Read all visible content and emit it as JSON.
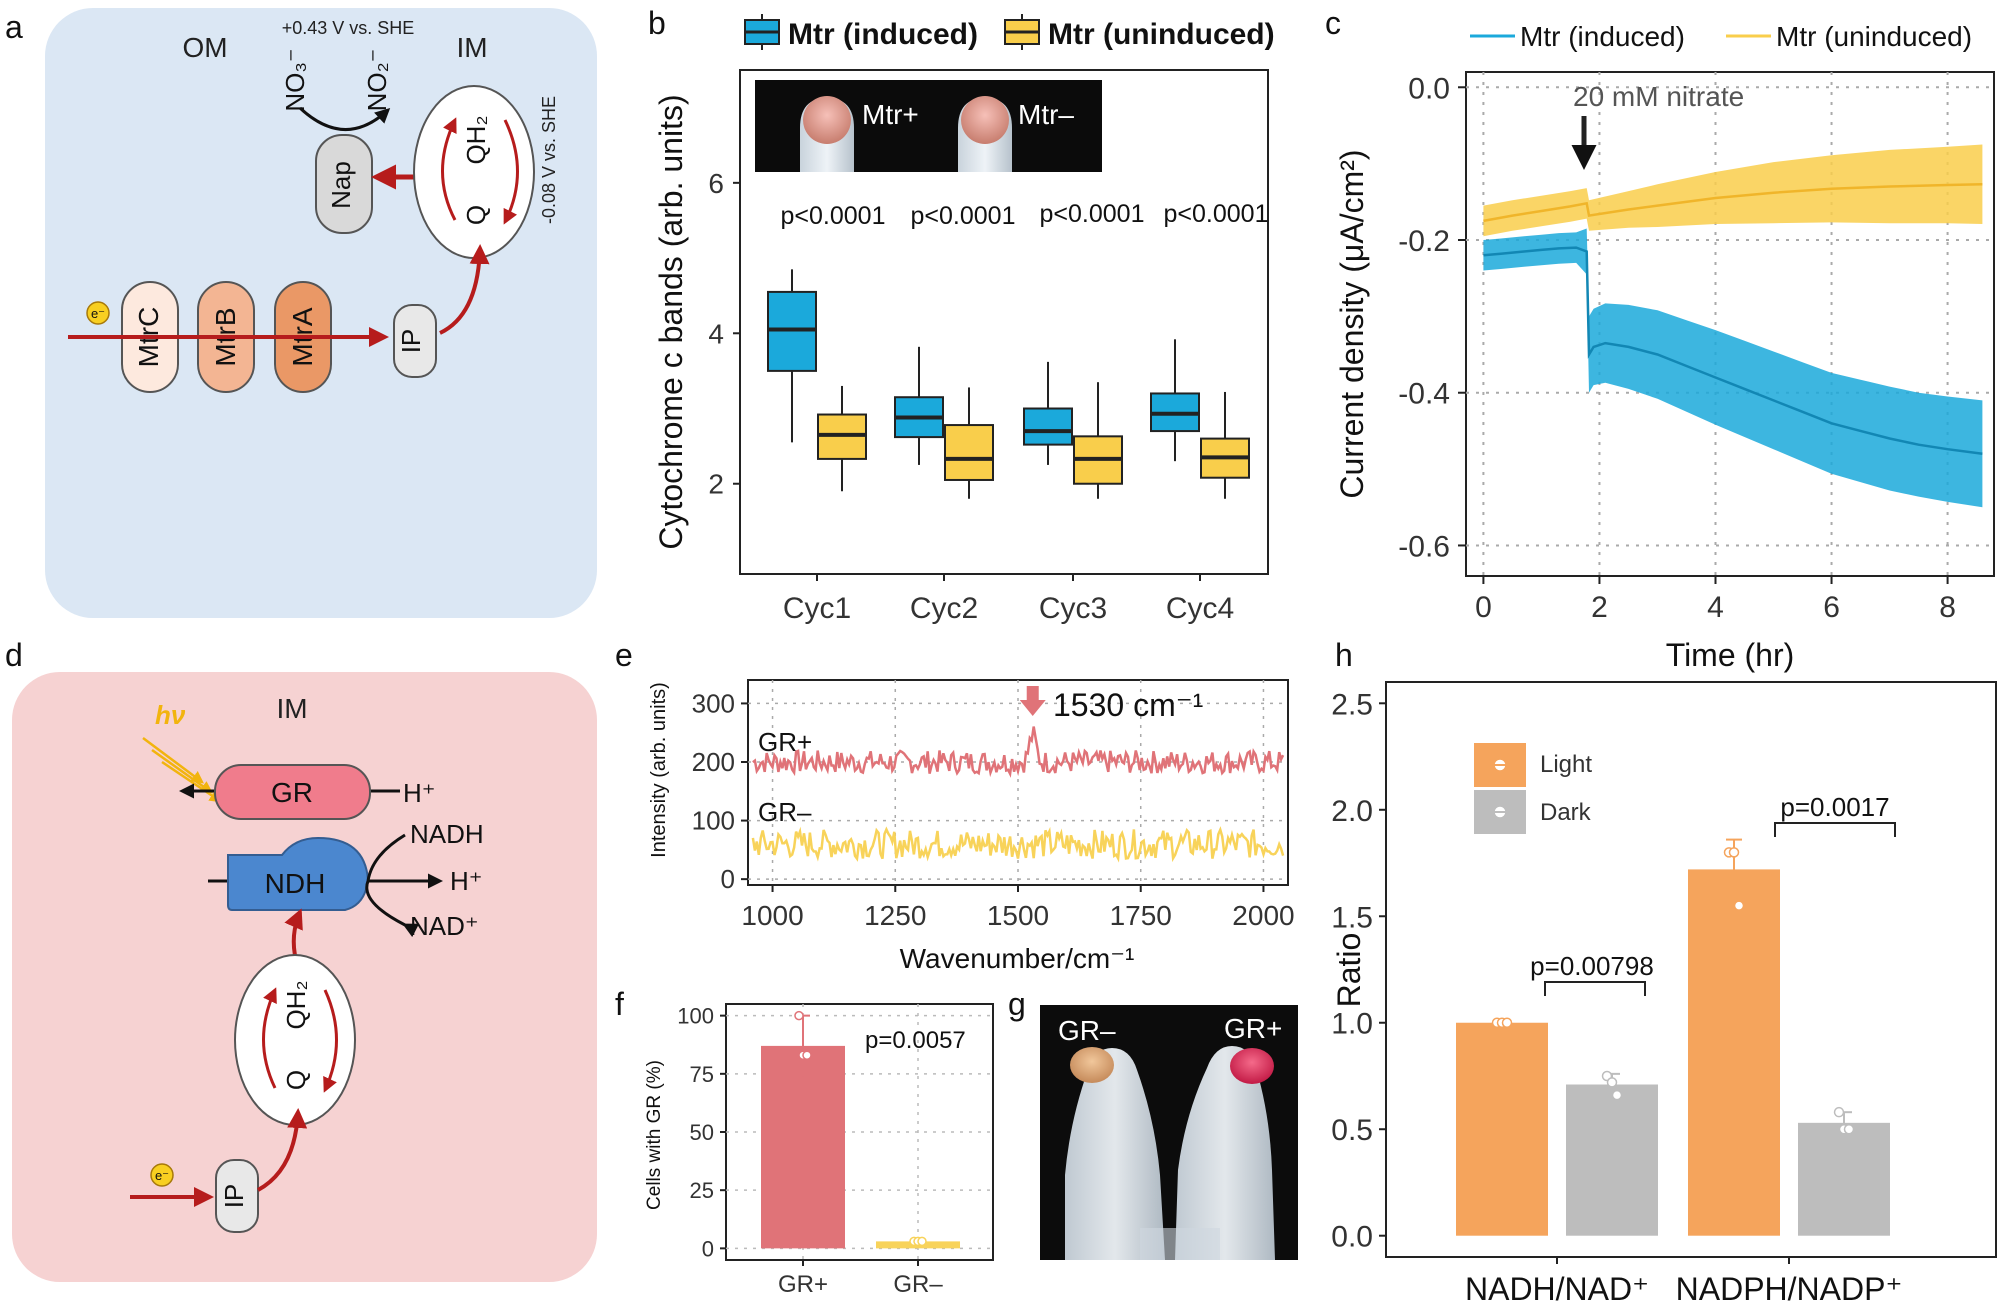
{
  "panel_labels": [
    "a",
    "b",
    "c",
    "d",
    "e",
    "f",
    "g",
    "h"
  ],
  "colors": {
    "induced": "#1ba9db",
    "uninduced": "#f9ce4b",
    "gr_plus": "#e07378",
    "gr_minus": "#f8d35a",
    "light": "#f5a45c",
    "dark": "#bdbdbd",
    "lipid": "#c8c29e",
    "bg_a": "#dbe7f4",
    "bg_d": "#f6d2d2",
    "red_arrow": "#b61c1c"
  },
  "diagram_a": {
    "om": "OM",
    "im": "IM",
    "potential_top": "+0.43 V vs. SHE",
    "potential_side": "-0.08 V vs. SHE",
    "no3": "NO₃⁻",
    "no2": "NO₂⁻",
    "nap": "Nap",
    "qh2": "QH₂",
    "q": "Q",
    "mtrc": "MtrC",
    "mtrb": "MtrB",
    "mtra": "MtrA",
    "ip": "IP",
    "electron": "e⁻"
  },
  "diagram_d": {
    "im": "IM",
    "hv": "hν",
    "gr": "GR",
    "hplus_gr": "H⁺",
    "ndh": "NDH",
    "nadh": "NADH",
    "hplus_ndh": "H⁺",
    "nad": "NAD⁺",
    "qh2": "QH₂",
    "q": "Q",
    "ip": "IP",
    "electron": "e⁻"
  },
  "chart_data": [
    {
      "panel": "b",
      "type": "box",
      "ylabel": "Cytochrome c bands (arb. units)",
      "categories": [
        "Cyc1",
        "Cyc2",
        "Cyc3",
        "Cyc4"
      ],
      "ylim": [
        0.8,
        7.5
      ],
      "yticks": [
        2,
        4,
        6
      ],
      "legend": [
        "Mtr (induced)",
        "Mtr (uninduced)"
      ],
      "photo_labels": [
        "Mtr+",
        "Mtr–"
      ],
      "pvalues": [
        "p<0.0001",
        "p<0.0001",
        "p<0.0001",
        "p<0.0001"
      ],
      "series": [
        {
          "name": "Mtr (induced)",
          "boxes": [
            {
              "min": 2.55,
              "q1": 3.5,
              "median": 4.05,
              "q3": 4.55,
              "max": 4.85
            },
            {
              "min": 2.25,
              "q1": 2.62,
              "median": 2.88,
              "q3": 3.15,
              "max": 3.82
            },
            {
              "min": 2.25,
              "q1": 2.52,
              "median": 2.7,
              "q3": 3.0,
              "max": 3.62
            },
            {
              "min": 2.3,
              "q1": 2.7,
              "median": 2.93,
              "q3": 3.2,
              "max": 3.92
            }
          ]
        },
        {
          "name": "Mtr (uninduced)",
          "boxes": [
            {
              "min": 1.9,
              "q1": 2.33,
              "median": 2.65,
              "q3": 2.92,
              "max": 3.3
            },
            {
              "min": 1.8,
              "q1": 2.05,
              "median": 2.33,
              "q3": 2.78,
              "max": 3.28
            },
            {
              "min": 1.8,
              "q1": 2.0,
              "median": 2.33,
              "q3": 2.63,
              "max": 3.35
            },
            {
              "min": 1.8,
              "q1": 2.08,
              "median": 2.35,
              "q3": 2.6,
              "max": 3.22
            }
          ]
        }
      ]
    },
    {
      "panel": "c",
      "type": "line",
      "xlabel": "Time (hr)",
      "ylabel": "Current density (μA/cm²)",
      "xlim": [
        -0.3,
        8.8
      ],
      "ylim": [
        -0.64,
        0.02
      ],
      "xticks": [
        0,
        2,
        4,
        6,
        8
      ],
      "yticks": [
        0.0,
        -0.2,
        -0.4,
        -0.6
      ],
      "ytick_labels": [
        "0.0",
        "-0.2",
        "-0.4",
        "-0.6"
      ],
      "legend": [
        "Mtr (induced)",
        "Mtr (uninduced)"
      ],
      "annotation": "20 mM nitrate",
      "annotation_x": 1.8,
      "series": [
        {
          "name": "Mtr (uninduced)",
          "x": [
            0,
            0.5,
            1.0,
            1.5,
            1.78,
            1.82,
            2.5,
            3,
            4,
            5,
            6,
            7,
            8,
            8.6
          ],
          "y": [
            -0.175,
            -0.168,
            -0.162,
            -0.156,
            -0.152,
            -0.168,
            -0.16,
            -0.155,
            -0.145,
            -0.138,
            -0.133,
            -0.13,
            -0.128,
            -0.127
          ],
          "band": [
            0.02,
            0.02,
            0.02,
            0.02,
            0.02,
            0.02,
            0.024,
            0.028,
            0.034,
            0.04,
            0.044,
            0.048,
            0.05,
            0.052
          ]
        },
        {
          "name": "Mtr (induced)",
          "x": [
            0,
            0.3,
            0.7,
            1.0,
            1.3,
            1.6,
            1.78,
            1.82,
            1.9,
            2.1,
            2.5,
            3,
            3.5,
            4,
            4.5,
            5,
            5.5,
            6,
            6.5,
            7,
            7.5,
            8,
            8.6
          ],
          "y": [
            -0.22,
            -0.218,
            -0.215,
            -0.213,
            -0.211,
            -0.21,
            -0.215,
            -0.35,
            -0.34,
            -0.335,
            -0.34,
            -0.35,
            -0.365,
            -0.38,
            -0.395,
            -0.41,
            -0.425,
            -0.44,
            -0.45,
            -0.46,
            -0.468,
            -0.474,
            -0.48
          ],
          "band": [
            0.02,
            0.02,
            0.02,
            0.02,
            0.02,
            0.02,
            0.03,
            0.05,
            0.05,
            0.052,
            0.055,
            0.058,
            0.06,
            0.062,
            0.063,
            0.064,
            0.065,
            0.066,
            0.067,
            0.068,
            0.068,
            0.069,
            0.07
          ]
        }
      ]
    },
    {
      "panel": "e",
      "type": "line",
      "xlabel": "Wavenumber/cm⁻¹",
      "ylabel": "Intensity (arb. units)",
      "xlim": [
        950,
        2050
      ],
      "ylim": [
        -10,
        340
      ],
      "xticks": [
        1000,
        1250,
        1500,
        1750,
        2000
      ],
      "yticks": [
        0,
        100,
        200,
        300
      ],
      "peak_label": "1530 cm⁻¹",
      "peak_x": 1530,
      "series": [
        {
          "name": "GR+",
          "baseline": 200,
          "noise": 20,
          "peak_x": 1530,
          "peak_height": 45
        },
        {
          "name": "GR–",
          "baseline": 60,
          "noise": 25
        }
      ]
    },
    {
      "panel": "f",
      "type": "bar",
      "ylabel": "Cells with GR (%)",
      "categories": [
        "GR+",
        "GR–"
      ],
      "values": [
        87,
        3
      ],
      "points": [
        [
          100,
          83,
          83
        ],
        [
          3,
          3,
          3
        ]
      ],
      "errors": [
        13,
        1
      ],
      "ylim": [
        -5,
        105
      ],
      "yticks": [
        0,
        25,
        50,
        75,
        100
      ],
      "pvalue": "p=0.0057"
    },
    {
      "panel": "h",
      "type": "bar",
      "ylabel": "Ratio",
      "categories": [
        "NADH/NAD⁺",
        "NADPH/NADP⁺"
      ],
      "ylim": [
        -0.1,
        2.6
      ],
      "yticks": [
        0.0,
        0.5,
        1.0,
        1.5,
        2.0,
        2.5
      ],
      "ytick_labels": [
        "0.0",
        "0.5",
        "1.0",
        "1.5",
        "2.0",
        "2.5"
      ],
      "legend": [
        "Light",
        "Dark"
      ],
      "pvalues": [
        "p=0.00798",
        "p=0.0017"
      ],
      "series": [
        {
          "name": "Light",
          "values": [
            1.0,
            1.72
          ],
          "errors": [
            0.01,
            0.14
          ],
          "points": [
            [
              1.0,
              1.0,
              1.0
            ],
            [
              1.8,
              1.8,
              1.55
            ]
          ]
        },
        {
          "name": "Dark",
          "values": [
            0.71,
            0.53
          ],
          "errors": [
            0.05,
            0.05
          ],
          "points": [
            [
              0.75,
              0.72,
              0.66
            ],
            [
              0.58,
              0.5,
              0.5
            ]
          ]
        }
      ]
    }
  ],
  "photo_g": {
    "labels": [
      "GR–",
      "GR+"
    ]
  }
}
